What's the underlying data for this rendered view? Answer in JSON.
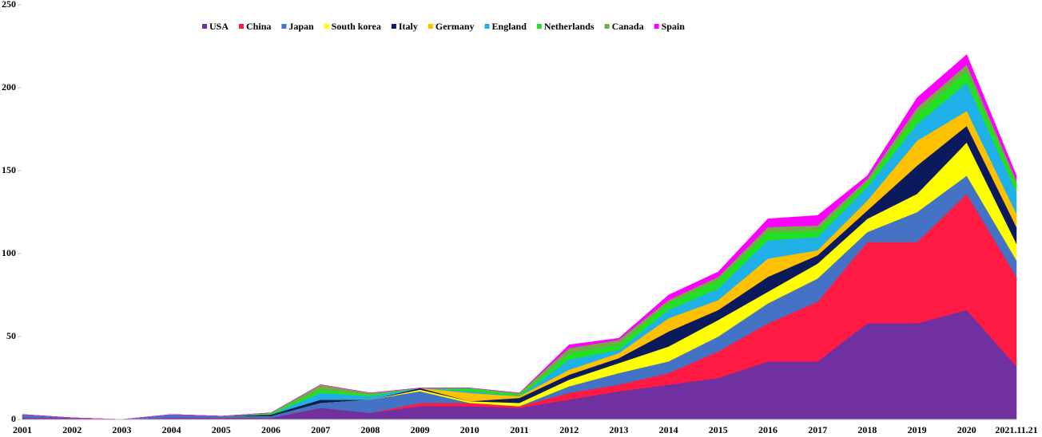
{
  "chart_data": {
    "type": "stacked-area",
    "categories": [
      "2001",
      "2002",
      "2003",
      "2004",
      "2005",
      "2006",
      "2007",
      "2008",
      "2009",
      "2010",
      "2011",
      "2012",
      "2013",
      "2014",
      "2015",
      "2016",
      "2017",
      "2018",
      "2019",
      "2020",
      "2021.11.21"
    ],
    "ylim": [
      0,
      250
    ],
    "yticks": [
      0,
      50,
      100,
      150,
      200,
      250
    ],
    "series": [
      {
        "name": "USA",
        "color": "#7030a0",
        "values": [
          1,
          1,
          0,
          1,
          1,
          1,
          7,
          4,
          8,
          8,
          7,
          12,
          17,
          21,
          25,
          35,
          35,
          58,
          58,
          66,
          32
        ]
      },
      {
        "name": "China",
        "color": "#ff1a44",
        "values": [
          0,
          0,
          0,
          0,
          0,
          0,
          0,
          0,
          2,
          2,
          1,
          4,
          4,
          7,
          16,
          23,
          36,
          49,
          49,
          70,
          54
        ]
      },
      {
        "name": "Japan",
        "color": "#4472c4",
        "values": [
          2,
          0,
          0,
          2,
          1,
          1,
          3,
          8,
          7,
          0,
          0,
          4,
          7,
          7,
          9,
          12,
          14,
          6,
          18,
          11,
          10
        ]
      },
      {
        "name": "South korea",
        "color": "#ffff00",
        "values": [
          0,
          0,
          0,
          0,
          0,
          0,
          0,
          0,
          1,
          1,
          2,
          4,
          6,
          9,
          10,
          7,
          9,
          8,
          11,
          20,
          10
        ]
      },
      {
        "name": "Italy",
        "color": "#0a1a5c",
        "values": [
          0,
          0,
          0,
          0,
          0,
          1,
          2,
          0,
          1,
          0,
          3,
          3,
          3,
          9,
          6,
          9,
          5,
          5,
          17,
          10,
          10
        ]
      },
      {
        "name": "Germany",
        "color": "#ffc000",
        "values": [
          0,
          0,
          0,
          0,
          0,
          0,
          0,
          0,
          0,
          5,
          1,
          3,
          3,
          8,
          6,
          11,
          3,
          6,
          15,
          9,
          8
        ]
      },
      {
        "name": "England",
        "color": "#1fb0e8",
        "values": [
          0,
          0,
          0,
          0,
          0,
          0,
          4,
          2,
          0,
          1,
          0,
          6,
          2,
          5,
          7,
          11,
          8,
          8,
          10,
          17,
          13
        ]
      },
      {
        "name": "Netherlands",
        "color": "#22e022",
        "values": [
          0,
          0,
          0,
          0,
          0,
          1,
          2,
          1,
          0,
          2,
          1,
          4,
          3,
          4,
          5,
          5,
          4,
          3,
          6,
          7,
          5
        ]
      },
      {
        "name": "Canada",
        "color": "#70ad47",
        "values": [
          0,
          0,
          0,
          0,
          0,
          0,
          3,
          1,
          0,
          0,
          1,
          3,
          3,
          2,
          2,
          3,
          3,
          2,
          4,
          4,
          2
        ]
      },
      {
        "name": "Spain",
        "color": "#ff00ff",
        "values": [
          0,
          0,
          0,
          0,
          0,
          0,
          0,
          0,
          0,
          0,
          0,
          2,
          1,
          3,
          3,
          5,
          6,
          2,
          6,
          6,
          3
        ]
      }
    ]
  }
}
